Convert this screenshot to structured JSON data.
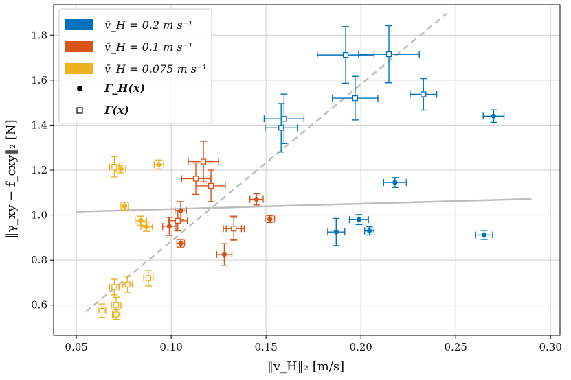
{
  "chart_data": {
    "type": "scatter",
    "xlabel": "‖v_H‖₂ [m/s]",
    "ylabel": "‖γ_xy − f_cxy‖₂ [N]",
    "xlim": [
      0.038,
      0.305
    ],
    "ylim": [
      0.465,
      1.935
    ],
    "xticks": [
      0.05,
      0.1,
      0.15,
      0.2,
      0.25,
      0.3
    ],
    "xtick_labels": [
      "0.05",
      "0.10",
      "0.15",
      "0.20",
      "0.25",
      "0.30"
    ],
    "yticks": [
      0.6,
      0.8,
      1.0,
      1.2,
      1.4,
      1.6,
      1.8
    ],
    "ytick_labels": [
      "0.6",
      "0.8",
      "1.0",
      "1.2",
      "1.4",
      "1.6",
      "1.8"
    ],
    "grid": true,
    "legend_position": "top-left",
    "legend": {
      "series_labels": [
        "v̄_H = 0.2 m s⁻¹",
        "v̄_H = 0.1 m s⁻¹",
        "v̄_H = 0.075 m s⁻¹"
      ],
      "marker_labels": [
        "Γ_H(x)",
        "Γ(x)"
      ]
    },
    "reference_lines": [
      {
        "name": "gray-dashed-fit",
        "style": "dashed",
        "color": "#bdbdbd",
        "x": [
          0.055,
          0.245
        ],
        "y": [
          0.57,
          1.895
        ]
      },
      {
        "name": "gray-solid-fit",
        "style": "solid",
        "color": "#bdbdbd",
        "x": [
          0.05,
          0.29
        ],
        "y": [
          1.015,
          1.072
        ]
      }
    ],
    "series": [
      {
        "name": "v̄_H = 0.2 m s⁻¹",
        "color": "#0072bd",
        "filled_points": [
          {
            "x": 0.27,
            "y": 1.44,
            "xerr": 0.0055,
            "yerr": 0.028
          },
          {
            "x": 0.218,
            "y": 1.145,
            "xerr": 0.006,
            "yerr": 0.022
          },
          {
            "x": 0.199,
            "y": 0.98,
            "xerr": 0.005,
            "yerr": 0.022
          },
          {
            "x": 0.2045,
            "y": 0.93,
            "xerr": 0.0025,
            "yerr": 0.018
          },
          {
            "x": 0.187,
            "y": 0.925,
            "xerr": 0.0045,
            "yerr": 0.06
          },
          {
            "x": 0.265,
            "y": 0.912,
            "xerr": 0.0045,
            "yerr": 0.02
          }
        ],
        "open_points": [
          {
            "x": 0.192,
            "y": 1.712,
            "xerr": 0.015,
            "yerr": 0.126
          },
          {
            "x": 0.2148,
            "y": 1.715,
            "xerr": 0.016,
            "yerr": 0.127
          },
          {
            "x": 0.233,
            "y": 1.537,
            "xerr": 0.007,
            "yerr": 0.07
          },
          {
            "x": 0.197,
            "y": 1.52,
            "xerr": 0.012,
            "yerr": 0.097
          },
          {
            "x": 0.1595,
            "y": 1.428,
            "xerr": 0.0105,
            "yerr": 0.11
          },
          {
            "x": 0.158,
            "y": 1.388,
            "xerr": 0.0085,
            "yerr": 0.108
          }
        ]
      },
      {
        "name": "v̄_H = 0.1 m s⁻¹",
        "color": "#d95319",
        "filled_points": [
          {
            "x": 0.145,
            "y": 1.07,
            "xerr": 0.0035,
            "yerr": 0.025
          },
          {
            "x": 0.152,
            "y": 0.982,
            "xerr": 0.0025,
            "yerr": 0.015
          },
          {
            "x": 0.105,
            "y": 1.02,
            "xerr": 0.003,
            "yerr": 0.04
          },
          {
            "x": 0.099,
            "y": 0.95,
            "xerr": 0.0035,
            "yerr": 0.04
          },
          {
            "x": 0.105,
            "y": 0.875,
            "xerr": 0.002,
            "yerr": 0.017
          },
          {
            "x": 0.133,
            "y": 0.94,
            "xerr": 0.004,
            "yerr": 0.05
          },
          {
            "x": 0.128,
            "y": 0.825,
            "xerr": 0.004,
            "yerr": 0.048
          }
        ],
        "open_points": [
          {
            "x": 0.117,
            "y": 1.238,
            "xerr": 0.008,
            "yerr": 0.09
          },
          {
            "x": 0.113,
            "y": 1.162,
            "xerr": 0.0075,
            "yerr": 0.07
          },
          {
            "x": 0.121,
            "y": 1.13,
            "xerr": 0.0075,
            "yerr": 0.07
          },
          {
            "x": 0.1035,
            "y": 0.975,
            "xerr": 0.005,
            "yerr": 0.045
          },
          {
            "x": 0.133,
            "y": 0.94,
            "xerr": 0.0055,
            "yerr": 0.055
          }
        ]
      },
      {
        "name": "v̄_H = 0.075 m s⁻¹",
        "color": "#edb120",
        "filled_points": [
          {
            "x": 0.0935,
            "y": 1.225,
            "xerr": 0.0025,
            "yerr": 0.02
          },
          {
            "x": 0.0735,
            "y": 1.205,
            "xerr": 0.0025,
            "yerr": 0.017
          },
          {
            "x": 0.0755,
            "y": 1.04,
            "xerr": 0.002,
            "yerr": 0.017
          },
          {
            "x": 0.084,
            "y": 0.975,
            "xerr": 0.003,
            "yerr": 0.02
          },
          {
            "x": 0.087,
            "y": 0.948,
            "xerr": 0.003,
            "yerr": 0.02
          }
        ],
        "open_points": [
          {
            "x": 0.07,
            "y": 1.215,
            "xerr": 0.0025,
            "yerr": 0.045
          },
          {
            "x": 0.088,
            "y": 0.72,
            "xerr": 0.0025,
            "yerr": 0.035
          },
          {
            "x": 0.077,
            "y": 0.692,
            "xerr": 0.0025,
            "yerr": 0.035
          },
          {
            "x": 0.07,
            "y": 0.68,
            "xerr": 0.0025,
            "yerr": 0.035
          },
          {
            "x": 0.071,
            "y": 0.6,
            "xerr": 0.0025,
            "yerr": 0.035
          },
          {
            "x": 0.0635,
            "y": 0.575,
            "xerr": 0.002,
            "yerr": 0.03
          },
          {
            "x": 0.071,
            "y": 0.558,
            "xerr": 0.002,
            "yerr": 0.022
          }
        ]
      }
    ]
  }
}
